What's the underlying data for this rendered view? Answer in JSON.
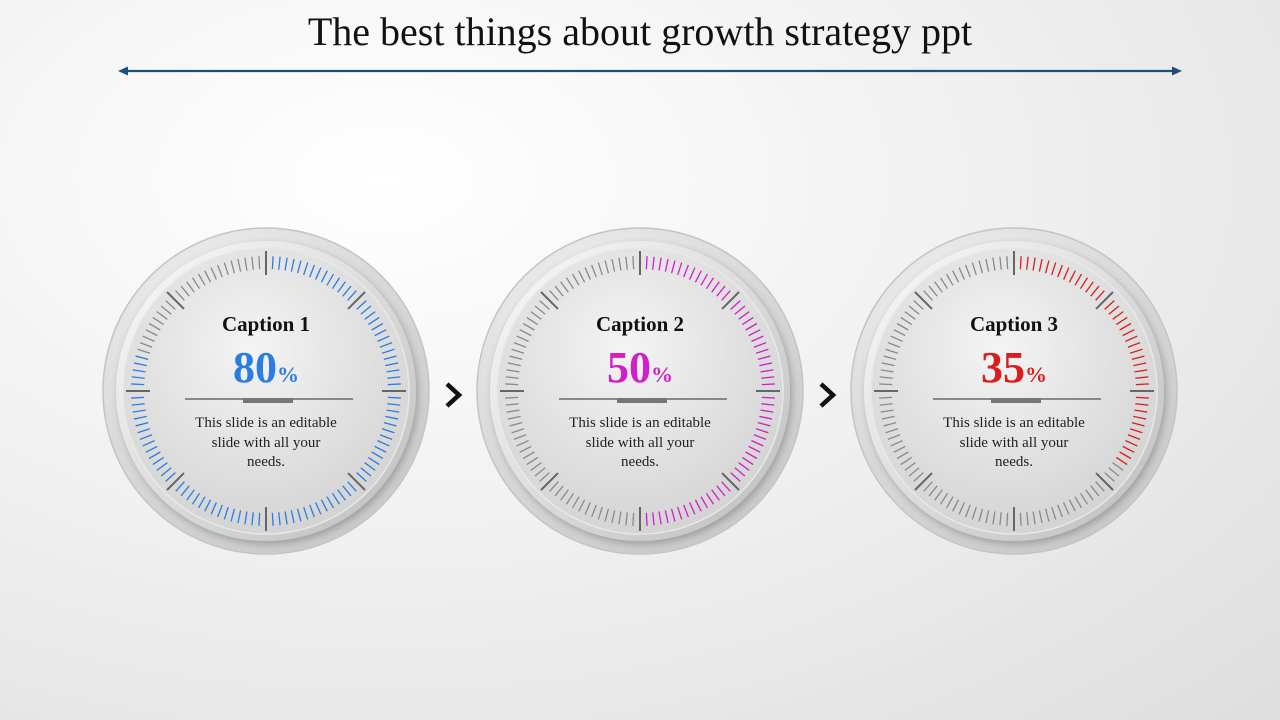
{
  "slide": {
    "title": "The best things about growth strategy ppt"
  },
  "gauges": [
    {
      "caption": "Caption 1",
      "value": 80,
      "percent_sign": "%",
      "color": "#2a7de1",
      "description": "This slide is an editable slide with all your needs."
    },
    {
      "caption": "Caption 2",
      "value": 50,
      "percent_sign": "%",
      "color": "#d21fc8",
      "description": "This slide is an editable slide with all your needs."
    },
    {
      "caption": "Caption 3",
      "value": 35,
      "percent_sign": "%",
      "color": "#d81e1e",
      "description": "This slide is an editable slide with all your needs."
    }
  ],
  "colors": {
    "divider": "#1f4e79",
    "tick_inactive": "#8a8a8a",
    "arrow": "#111111"
  },
  "icons": {
    "connector": "chevron-right-icon",
    "divider": "double-headed-arrow-line"
  }
}
